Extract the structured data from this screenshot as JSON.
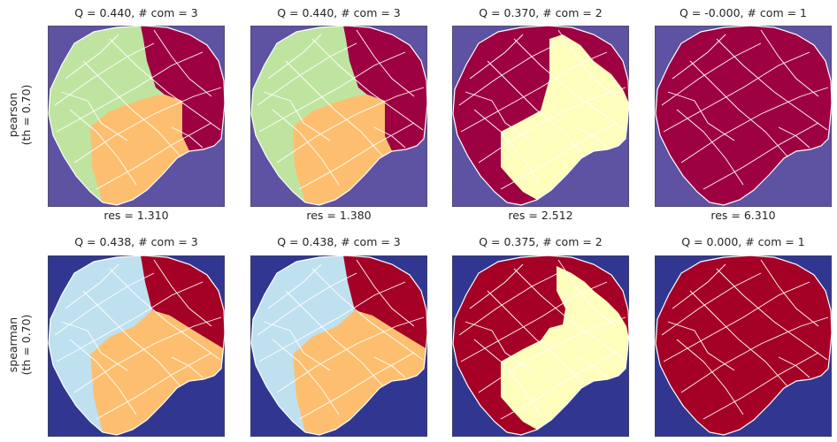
{
  "colors": {
    "pearson_background": "#5e52a2",
    "spearman_background": "#313791",
    "community_green": "#bfe4a0",
    "community_orange": "#fdbf6f",
    "community_crimson": "#9e0142",
    "community_cream": "#fefebd",
    "community_lightblue": "#bfe0ef",
    "community_red": "#a50026",
    "parcel_boundary": "#ffffff"
  },
  "chart_data": {
    "type": "grid-of-brain-parcellation-maps",
    "rows": [
      {
        "label_line1": "pearson",
        "label_line2": "(th = 0.70)",
        "panels": [
          {
            "title": "Q = 0.440,  # com = 3",
            "resolution": "res = 1.310",
            "Q": 0.44,
            "communities": 3,
            "res": 1.31,
            "scheme": "three_pearson"
          },
          {
            "title": "Q = 0.440,  # com = 3",
            "resolution": "res = 1.380",
            "Q": 0.44,
            "communities": 3,
            "res": 1.38,
            "scheme": "three_pearson"
          },
          {
            "title": "Q = 0.370,  # com = 2",
            "resolution": "res = 2.512",
            "Q": 0.37,
            "communities": 2,
            "res": 2.512,
            "scheme": "two_pearson"
          },
          {
            "title": "Q = -0.000,  # com = 1",
            "resolution": "res = 6.310",
            "Q": -0.0,
            "communities": 1,
            "res": 6.31,
            "scheme": "one_pearson"
          }
        ]
      },
      {
        "label_line1": "spearman",
        "label_line2": "(th = 0.70)",
        "panels": [
          {
            "title": "Q = 0.438,  # com = 3",
            "resolution": "",
            "Q": 0.438,
            "communities": 3,
            "scheme": "three_spearman"
          },
          {
            "title": "Q = 0.438,  # com = 3",
            "resolution": "",
            "Q": 0.438,
            "communities": 3,
            "scheme": "three_spearman"
          },
          {
            "title": "Q = 0.375,  # com = 2",
            "resolution": "",
            "Q": 0.375,
            "communities": 2,
            "scheme": "two_spearman"
          },
          {
            "title": "Q = 0.000,  # com = 1",
            "resolution": "",
            "Q": 0.0,
            "communities": 1,
            "scheme": "one_spearman"
          }
        ]
      }
    ]
  }
}
